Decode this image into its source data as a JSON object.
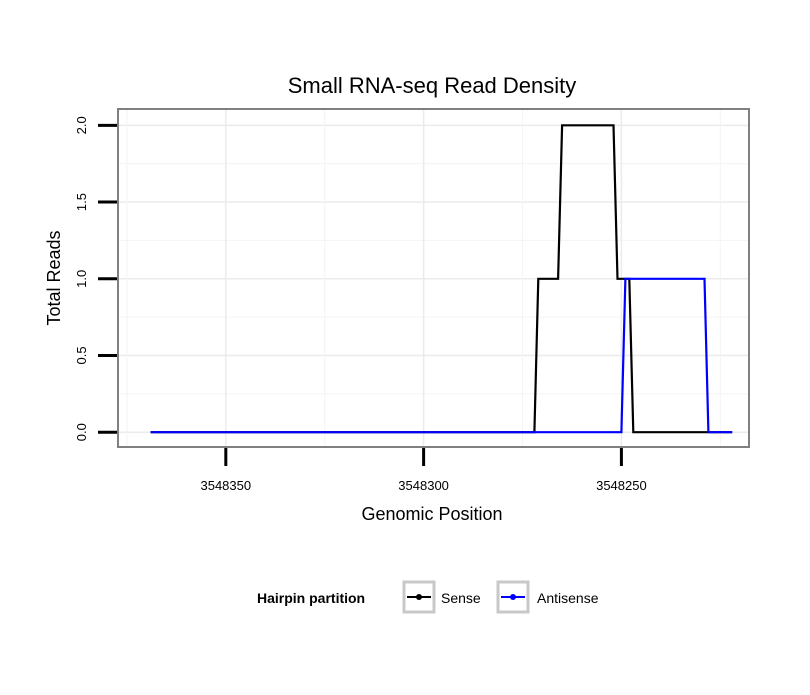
{
  "chart_data": {
    "type": "line",
    "title": "Small RNA-seq Read Density",
    "xlabel": "Genomic Position",
    "ylabel": "Total Reads",
    "x_reversed": true,
    "xlim": [
      3548377,
      3548218
    ],
    "ylim": [
      -0.09,
      2.1
    ],
    "x_ticks": [
      3548350,
      3548300,
      3548250
    ],
    "x_tick_labels": [
      "3548350",
      "3548300",
      "3548250"
    ],
    "y_ticks": [
      0,
      0.5,
      1,
      1.5,
      2
    ],
    "y_tick_labels": [
      "0.0",
      "0.5",
      "1.0",
      "1.5",
      "2.0"
    ],
    "grid": true,
    "legend": {
      "title": "Hairpin partition",
      "position": "bottom"
    },
    "series": [
      {
        "name": "Sense",
        "color": "#000000",
        "x": [
          3548369,
          3548272,
          3548271,
          3548266,
          3548265,
          3548252,
          3548251,
          3548248,
          3548247,
          3548222
        ],
        "y": [
          0,
          0,
          1,
          1,
          2,
          2,
          1,
          1,
          0,
          0
        ]
      },
      {
        "name": "Antisense",
        "color": "#0000ff",
        "x": [
          3548369,
          3548250,
          3548249,
          3548229,
          3548228,
          3548222
        ],
        "y": [
          0,
          0,
          1,
          1,
          0,
          0
        ]
      }
    ]
  }
}
